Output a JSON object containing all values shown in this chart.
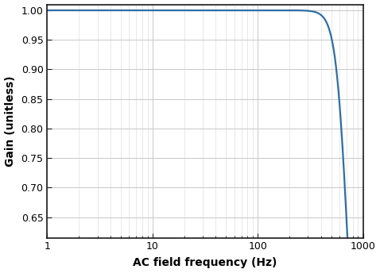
{
  "xlabel": "AC field frequency (Hz)",
  "ylabel": "Gain (unitless)",
  "xlim": [
    1,
    1000
  ],
  "ylim": [
    0.615,
    1.01
  ],
  "yticks": [
    0.65,
    0.7,
    0.75,
    0.8,
    0.85,
    0.9,
    0.95,
    1.0
  ],
  "xticks": [
    1,
    10,
    100,
    1000
  ],
  "line_color": "#2e6da4",
  "line_width": 1.6,
  "fc": 700,
  "filter_order": 3,
  "background_color": "#ffffff",
  "grid_major_color": "#c8c8c8",
  "grid_minor_color": "#e0e0e0",
  "tick_label_fontsize": 9,
  "axis_label_fontsize": 10,
  "axis_label_fontweight": "bold",
  "spine_color": "#1a1a1a"
}
